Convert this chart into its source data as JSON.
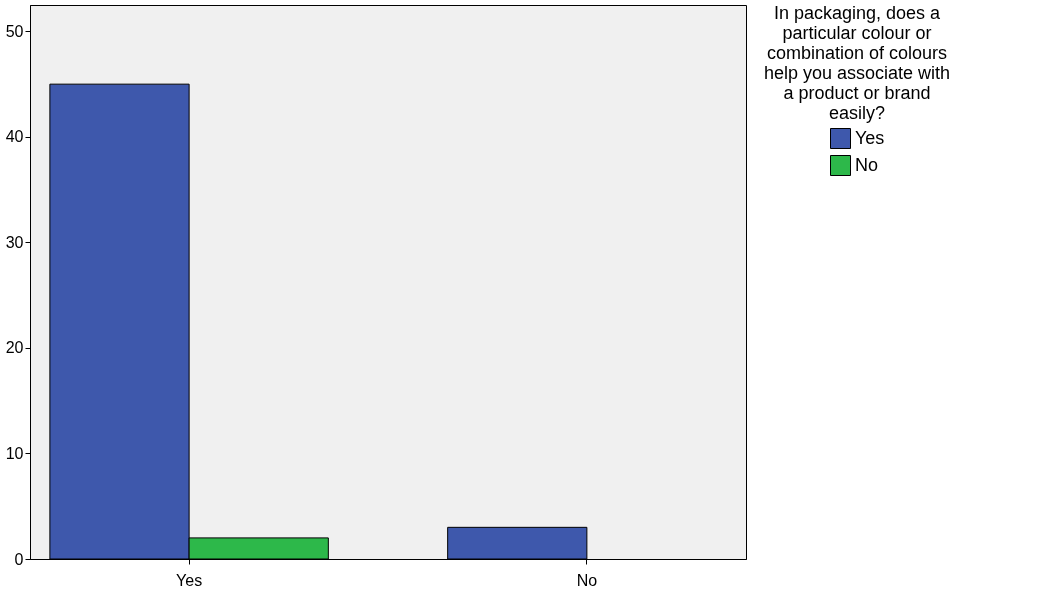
{
  "chart_data": {
    "type": "bar",
    "categories": [
      "Yes",
      "No"
    ],
    "series": [
      {
        "name": "Yes",
        "color": "#3e58ac",
        "values": [
          45,
          3
        ]
      },
      {
        "name": "No",
        "color": "#2db84a",
        "values": [
          2,
          null
        ]
      }
    ],
    "legend_title": "In packaging, does a particular colour or combination of colours help you associate with a product or brand easily?",
    "ylim": [
      0,
      52.5
    ],
    "yticks": [
      0,
      10,
      20,
      30,
      40,
      50
    ],
    "grid": false,
    "legend": "right"
  }
}
